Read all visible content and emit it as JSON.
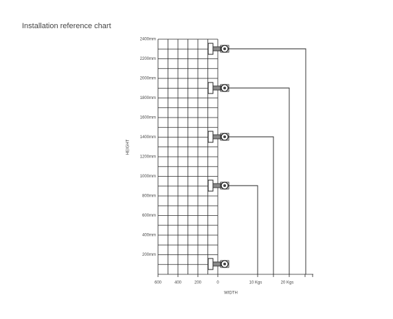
{
  "title": "Installation reference chart",
  "y_axis": {
    "label": "HEIGHT",
    "ticks": [
      "2400mm",
      "2200mm",
      "2000mm",
      "1800mm",
      "1600mm",
      "1400mm",
      "1200mm",
      "1000mm",
      "800mm",
      "600mm",
      "400mm",
      "200mm"
    ]
  },
  "x_axis": {
    "label": "WIDTH",
    "ticks": [
      "600",
      "400",
      "200",
      "0"
    ]
  },
  "weights": [
    "10 Kgs",
    "20 Kgs"
  ]
}
